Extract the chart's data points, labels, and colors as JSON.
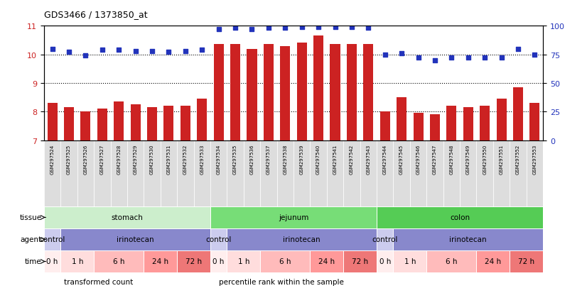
{
  "title": "GDS3466 / 1373850_at",
  "samples": [
    "GSM297524",
    "GSM297525",
    "GSM297526",
    "GSM297527",
    "GSM297528",
    "GSM297529",
    "GSM297530",
    "GSM297531",
    "GSM297532",
    "GSM297533",
    "GSM297534",
    "GSM297535",
    "GSM297536",
    "GSM297537",
    "GSM297538",
    "GSM297539",
    "GSM297540",
    "GSM297541",
    "GSM297542",
    "GSM297543",
    "GSM297544",
    "GSM297545",
    "GSM297546",
    "GSM297547",
    "GSM297548",
    "GSM297549",
    "GSM297550",
    "GSM297551",
    "GSM297552",
    "GSM297553"
  ],
  "bar_values": [
    8.3,
    8.15,
    8.0,
    8.1,
    8.35,
    8.25,
    8.15,
    8.2,
    8.2,
    8.45,
    10.35,
    10.35,
    10.2,
    10.35,
    10.3,
    10.4,
    10.65,
    10.35,
    10.35,
    10.35,
    8.0,
    8.5,
    7.95,
    7.9,
    8.2,
    8.15,
    8.2,
    8.45,
    8.85,
    8.3
  ],
  "dot_values": [
    80,
    77,
    74,
    79,
    79,
    78,
    78,
    77,
    78,
    79,
    97,
    98,
    97,
    98,
    98,
    99,
    99,
    99,
    99,
    98,
    75,
    76,
    72,
    70,
    72,
    72,
    72,
    72,
    80,
    75
  ],
  "ylim_left": [
    7,
    11
  ],
  "ylim_right": [
    0,
    100
  ],
  "yticks_left": [
    7,
    8,
    9,
    10,
    11
  ],
  "yticks_right": [
    0,
    25,
    50,
    75,
    100
  ],
  "bar_color": "#cc2222",
  "dot_color": "#2233bb",
  "dotted_line_color": "#000000",
  "chart_bg": "#ffffff",
  "xticklabel_bg": "#dddddd",
  "tissue_groups": [
    {
      "label": "stomach",
      "start": 0,
      "end": 9,
      "color": "#cceecc"
    },
    {
      "label": "jejunum",
      "start": 10,
      "end": 19,
      "color": "#77dd77"
    },
    {
      "label": "colon",
      "start": 20,
      "end": 29,
      "color": "#55cc55"
    }
  ],
  "agent_groups": [
    {
      "label": "control",
      "start": 0,
      "end": 0,
      "color": "#ccccee"
    },
    {
      "label": "irinotecan",
      "start": 1,
      "end": 9,
      "color": "#8888cc"
    },
    {
      "label": "control",
      "start": 10,
      "end": 10,
      "color": "#ccccee"
    },
    {
      "label": "irinotecan",
      "start": 11,
      "end": 19,
      "color": "#8888cc"
    },
    {
      "label": "control",
      "start": 20,
      "end": 20,
      "color": "#ccccee"
    },
    {
      "label": "irinotecan",
      "start": 21,
      "end": 29,
      "color": "#8888cc"
    }
  ],
  "time_groups": [
    {
      "label": "0 h",
      "start": 0,
      "end": 0,
      "color": "#ffeeee"
    },
    {
      "label": "1 h",
      "start": 1,
      "end": 2,
      "color": "#ffdddd"
    },
    {
      "label": "6 h",
      "start": 3,
      "end": 5,
      "color": "#ffbbbb"
    },
    {
      "label": "24 h",
      "start": 6,
      "end": 7,
      "color": "#ff9999"
    },
    {
      "label": "72 h",
      "start": 8,
      "end": 9,
      "color": "#ee7777"
    },
    {
      "label": "0 h",
      "start": 10,
      "end": 10,
      "color": "#ffeeee"
    },
    {
      "label": "1 h",
      "start": 11,
      "end": 12,
      "color": "#ffdddd"
    },
    {
      "label": "6 h",
      "start": 13,
      "end": 15,
      "color": "#ffbbbb"
    },
    {
      "label": "24 h",
      "start": 16,
      "end": 17,
      "color": "#ff9999"
    },
    {
      "label": "72 h",
      "start": 18,
      "end": 19,
      "color": "#ee7777"
    },
    {
      "label": "0 h",
      "start": 20,
      "end": 20,
      "color": "#ffeeee"
    },
    {
      "label": "1 h",
      "start": 21,
      "end": 22,
      "color": "#ffdddd"
    },
    {
      "label": "6 h",
      "start": 23,
      "end": 25,
      "color": "#ffbbbb"
    },
    {
      "label": "24 h",
      "start": 26,
      "end": 27,
      "color": "#ff9999"
    },
    {
      "label": "72 h",
      "start": 28,
      "end": 29,
      "color": "#ee7777"
    }
  ],
  "row_labels": [
    "tissue",
    "agent",
    "time"
  ],
  "legend_items": [
    {
      "label": "transformed count",
      "color": "#cc2222"
    },
    {
      "label": "percentile rank within the sample",
      "color": "#2233bb"
    }
  ],
  "background_color": "#ffffff"
}
